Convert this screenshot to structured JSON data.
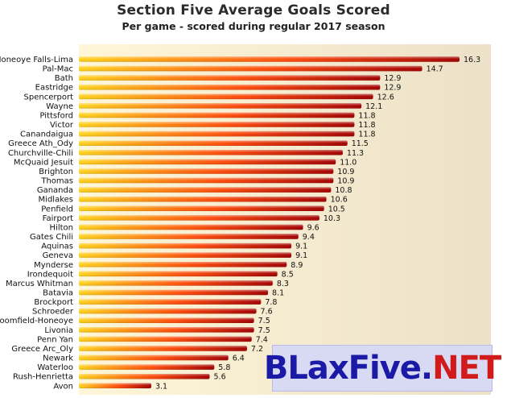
{
  "chart_data": {
    "type": "bar",
    "orientation": "horizontal",
    "title": "Section Five Average Goals Scored",
    "subtitle": "Per game - scored during regular 2017 season",
    "xlabel": "",
    "ylabel": "",
    "xlim": [
      0,
      17.5
    ],
    "grid": false,
    "categories": [
      "Honeoye Falls-Lima",
      "Pal-Mac",
      "Bath",
      "Eastridge",
      "Spencerport",
      "Wayne",
      "Pittsford",
      "Victor",
      "Canandaigua",
      "Greece Ath_Ody",
      "Churchville-Chili",
      "McQuaid Jesuit",
      "Brighton",
      "Thomas",
      "Gananda",
      "Midlakes",
      "Penfield",
      "Fairport",
      "Hilton",
      "Gates Chili",
      "Aquinas",
      "Geneva",
      "Mynderse",
      "Irondequoit",
      "Marcus Whitman",
      "Batavia",
      "Brockport",
      "Schroeder",
      "Bloomfield-Honeoye",
      "Livonia",
      "Penn Yan",
      "Greece Arc_Oly",
      "Newark",
      "Waterloo",
      "Rush-Henrietta",
      "Avon"
    ],
    "values": [
      16.3,
      14.7,
      12.9,
      12.9,
      12.6,
      12.1,
      11.8,
      11.8,
      11.8,
      11.5,
      11.3,
      11.0,
      10.9,
      10.9,
      10.8,
      10.6,
      10.5,
      10.3,
      9.6,
      9.4,
      9.1,
      9.1,
      8.9,
      8.5,
      8.3,
      8.1,
      7.8,
      7.6,
      7.5,
      7.5,
      7.4,
      7.2,
      6.4,
      5.8,
      5.6,
      3.1
    ],
    "value_labels": [
      "16.3",
      "14.7",
      "12.9",
      "12.9",
      "12.6",
      "12.1",
      "11.8",
      "11.8",
      "11.8",
      "11.5",
      "11.3",
      "11.0",
      "10.9",
      "10.9",
      "10.8",
      "10.6",
      "10.5",
      "10.3",
      "9.6",
      "9.4",
      "9.1",
      "9.1",
      "8.9",
      "8.5",
      "8.3",
      "8.1",
      "7.8",
      "7.6",
      "7.5",
      "7.5",
      "7.4",
      "7.2",
      "6.4",
      "5.8",
      "5.6",
      "3.1"
    ],
    "colors": {
      "bar_start": "#ffd21a",
      "bar_mid": "#ff4a0a",
      "bar_end": "#a30000",
      "plot_bg_left": "#fff6d8",
      "plot_bg_right": "#ece1c8"
    }
  },
  "watermark": {
    "parts": [
      {
        "text": "BLaxFive.",
        "color": "#1a1aa6"
      },
      {
        "text": "NET",
        "color": "#d11a1a"
      }
    ]
  }
}
